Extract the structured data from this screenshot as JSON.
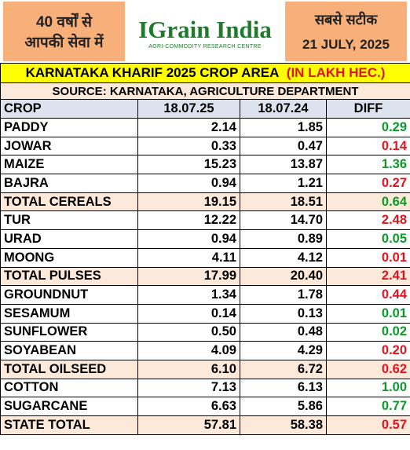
{
  "header": {
    "left_line1": "40 वर्षों से",
    "left_line2": "आपकी सेवा में",
    "logo": "IGrain India",
    "logo_subtitle": "AGRI-COMMODITY RESEARCH CENTRE",
    "right_line1": "सबसे सटीक",
    "right_date": "21 JULY, 2025"
  },
  "title": {
    "main": "KARNATAKA KHARIF 2025 CROP AREA",
    "unit": "(IN LAKH HEC.)"
  },
  "source": "SOURCE: KARNATAKA, AGRICULTURE DEPARTMENT",
  "table": {
    "columns": [
      "CROP",
      "18.07.25",
      "18.07.24",
      "DIFF"
    ],
    "rows": [
      {
        "crop": "PADDY",
        "a": "2.14",
        "b": "1.85",
        "diff": "0.29",
        "diff_color": "#0a9a2a",
        "highlight": false
      },
      {
        "crop": "JOWAR",
        "a": "0.33",
        "b": "0.47",
        "diff": "0.14",
        "diff_color": "#e0141e",
        "highlight": false
      },
      {
        "crop": "MAIZE",
        "a": "15.23",
        "b": "13.87",
        "diff": "1.36",
        "diff_color": "#0a9a2a",
        "highlight": false
      },
      {
        "crop": "BAJRA",
        "a": "0.94",
        "b": "1.21",
        "diff": "0.27",
        "diff_color": "#e0141e",
        "highlight": false
      },
      {
        "crop": "TOTAL CEREALS",
        "a": "19.15",
        "b": "18.51",
        "diff": "0.64",
        "diff_color": "#0a9a2a",
        "highlight": true
      },
      {
        "crop": "TUR",
        "a": "12.22",
        "b": "14.70",
        "diff": "2.48",
        "diff_color": "#e0141e",
        "highlight": false
      },
      {
        "crop": "URAD",
        "a": "0.94",
        "b": "0.89",
        "diff": "0.05",
        "diff_color": "#0a9a2a",
        "highlight": false
      },
      {
        "crop": "MOONG",
        "a": "4.11",
        "b": "4.12",
        "diff": "0.01",
        "diff_color": "#e0141e",
        "highlight": false
      },
      {
        "crop": "TOTAL PULSES",
        "a": "17.99",
        "b": "20.40",
        "diff": "2.41",
        "diff_color": "#e0141e",
        "highlight": true
      },
      {
        "crop": "GROUNDNUT",
        "a": "1.34",
        "b": "1.78",
        "diff": "0.44",
        "diff_color": "#e0141e",
        "highlight": false
      },
      {
        "crop": "SESAMUM",
        "a": "0.14",
        "b": "0.13",
        "diff": "0.01",
        "diff_color": "#0a9a2a",
        "highlight": false
      },
      {
        "crop": "SUNFLOWER",
        "a": "0.50",
        "b": "0.48",
        "diff": "0.02",
        "diff_color": "#0a9a2a",
        "highlight": false
      },
      {
        "crop": "SOYABEAN",
        "a": "4.09",
        "b": "4.29",
        "diff": "0.20",
        "diff_color": "#e0141e",
        "highlight": false
      },
      {
        "crop": "TOTAL OILSEED",
        "a": "6.10",
        "b": "6.72",
        "diff": "0.62",
        "diff_color": "#e0141e",
        "highlight": true
      },
      {
        "crop": "COTTON",
        "a": "7.13",
        "b": "6.13",
        "diff": "1.00",
        "diff_color": "#0a9a2a",
        "highlight": false
      },
      {
        "crop": "SUGARCANE",
        "a": "6.63",
        "b": "5.86",
        "diff": "0.77",
        "diff_color": "#0a9a2a",
        "highlight": false
      },
      {
        "crop": "STATE TOTAL",
        "a": "57.81",
        "b": "58.38",
        "diff": "0.57",
        "diff_color": "#e0141e",
        "highlight": true
      }
    ]
  }
}
